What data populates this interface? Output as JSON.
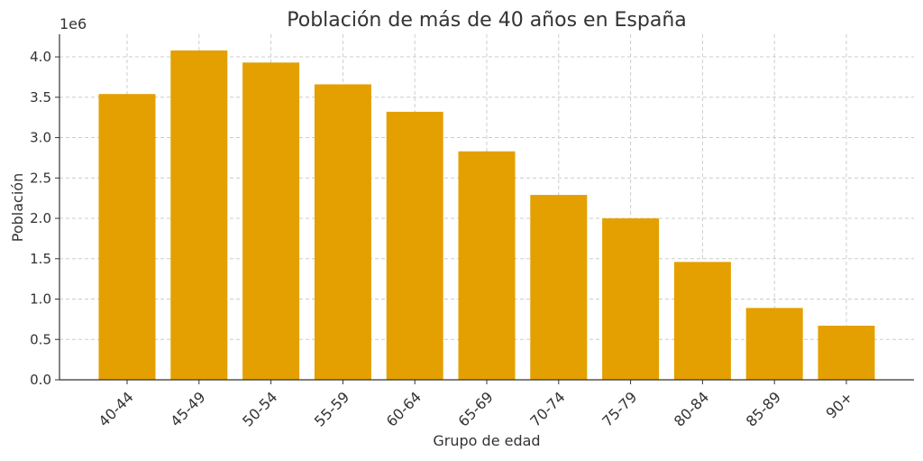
{
  "chart_data": {
    "type": "bar",
    "title": "Población de más de 40 años en España",
    "xlabel": "Grupo de edad",
    "ylabel": "Población",
    "y_offset_label": "1e6",
    "categories": [
      "40-44",
      "45-49",
      "50-54",
      "55-59",
      "60-64",
      "65-69",
      "70-74",
      "75-79",
      "80-84",
      "85-89",
      "90+"
    ],
    "values": [
      3540000,
      4080000,
      3930000,
      3660000,
      3320000,
      2830000,
      2290000,
      2000000,
      1460000,
      890000,
      670000
    ],
    "ylim": [
      0,
      4280000
    ],
    "yticks": [
      0,
      500000,
      1000000,
      1500000,
      2000000,
      2500000,
      3000000,
      3500000,
      4000000
    ],
    "ytick_labels": [
      "0.0",
      "0.5",
      "1.0",
      "1.5",
      "2.0",
      "2.5",
      "3.0",
      "3.5",
      "4.0"
    ],
    "grid": true,
    "bar_color": "#E3A000",
    "grid_color": "#cccccc"
  }
}
